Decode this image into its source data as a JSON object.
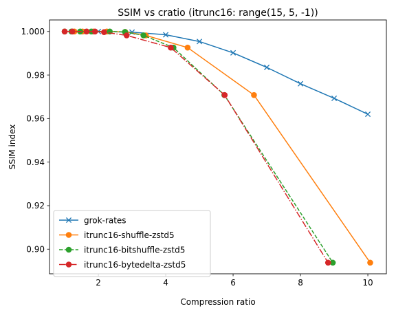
{
  "chart_data": {
    "type": "line",
    "title": "SSIM vs cratio (itrunc16: range(15, 5, -1))",
    "xlabel": "Compression ratio",
    "ylabel": "SSIM index",
    "xlim": [
      0.55,
      10.55
    ],
    "ylim": [
      0.8887,
      1.0053
    ],
    "xticks": [
      2,
      4,
      6,
      8,
      10
    ],
    "yticks": [
      0.9,
      0.92,
      0.94,
      0.96,
      0.98,
      1.0
    ],
    "xtick_labels": [
      "2",
      "4",
      "6",
      "8",
      "10"
    ],
    "ytick_labels": [
      "0.90",
      "0.92",
      "0.94",
      "0.96",
      "0.98",
      "1.000"
    ],
    "grid": false,
    "legend_position": "lower-left",
    "series": [
      {
        "name": "grok-rates",
        "color": "#1f77b4",
        "linestyle": "solid",
        "marker": "x",
        "x": [
          1.53,
          2.0,
          3.0,
          4.0,
          5.0,
          6.0,
          7.0,
          8.0,
          9.0,
          10.0
        ],
        "y": [
          1.0,
          1.0,
          0.9997,
          0.9985,
          0.9954,
          0.9902,
          0.9835,
          0.976,
          0.9693,
          0.962
        ]
      },
      {
        "name": "itrunc16-shuffle-zstd5",
        "color": "#ff7f0e",
        "linestyle": "solid",
        "marker": "o",
        "x": [
          1.0,
          1.29,
          1.53,
          1.85,
          2.25,
          2.8,
          3.41,
          4.65,
          6.62,
          10.07
        ],
        "y": [
          1.0,
          1.0,
          1.0,
          1.0,
          1.0,
          0.9998,
          0.9982,
          0.9926,
          0.9708,
          0.8938
        ]
      },
      {
        "name": "itrunc16-bitshuffle-zstd5",
        "color": "#2ca02c",
        "linestyle": "dashed",
        "marker": "o",
        "x": [
          1.0,
          1.2,
          1.46,
          1.79,
          2.34,
          2.79,
          3.34,
          4.23,
          5.74,
          8.96
        ],
        "y": [
          1.0,
          1.0,
          1.0,
          1.0,
          1.0,
          0.9998,
          0.9982,
          0.9926,
          0.9708,
          0.8938
        ]
      },
      {
        "name": "itrunc16-bytedelta-zstd5",
        "color": "#d62728",
        "linestyle": "dashdot",
        "marker": "o",
        "x": [
          1.0,
          1.23,
          1.65,
          1.9,
          2.17,
          2.84,
          4.15,
          5.75,
          8.82
        ],
        "y": [
          1.0,
          1.0,
          1.0,
          1.0,
          0.9997,
          0.9982,
          0.9926,
          0.9708,
          0.8938
        ]
      }
    ]
  }
}
